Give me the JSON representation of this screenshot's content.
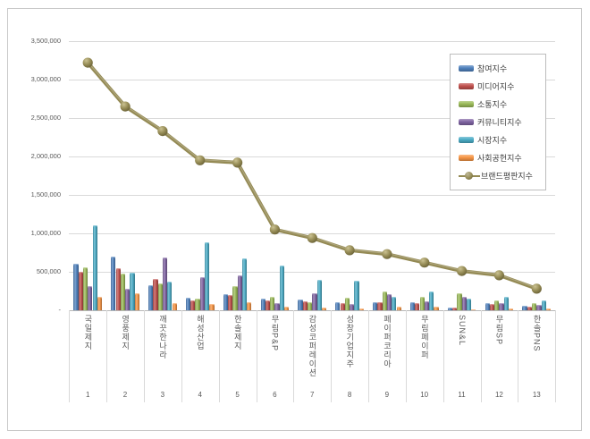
{
  "chart_data": {
    "type": "bar+line",
    "title": "",
    "categories": [
      "국일제지",
      "영풍제지",
      "깨끗한나라",
      "해성산업",
      "한솔제지",
      "무림P&P",
      "감성코퍼레이션",
      "성창기업지주",
      "페이퍼코리아",
      "무림페이퍼",
      "SUN&L",
      "무림SP",
      "한솔PNS"
    ],
    "ranks": [
      "1",
      "2",
      "3",
      "4",
      "5",
      "6",
      "7",
      "8",
      "9",
      "10",
      "11",
      "12",
      "13"
    ],
    "series": [
      {
        "key": "participation",
        "name": "참여지수",
        "color": "#4F81BD",
        "values": [
          610000,
          700000,
          330000,
          165000,
          210000,
          150000,
          140000,
          105000,
          105000,
          105000,
          35000,
          95000,
          60000
        ]
      },
      {
        "key": "media",
        "name": "미디어지수",
        "color": "#C0504D",
        "values": [
          500000,
          545000,
          410000,
          130000,
          200000,
          130000,
          115000,
          95000,
          105000,
          95000,
          35000,
          80000,
          50000
        ]
      },
      {
        "key": "communication",
        "name": "소통지수",
        "color": "#9BBB59",
        "values": [
          560000,
          475000,
          345000,
          150000,
          315000,
          175000,
          105000,
          165000,
          240000,
          175000,
          220000,
          130000,
          95000
        ]
      },
      {
        "key": "community",
        "name": "커뮤니티지수",
        "color": "#8064A2",
        "values": [
          310000,
          280000,
          690000,
          435000,
          455000,
          95000,
          220000,
          80000,
          210000,
          115000,
          175000,
          95000,
          70000
        ]
      },
      {
        "key": "market",
        "name": "시장지수",
        "color": "#4BACC6",
        "values": [
          1100000,
          490000,
          370000,
          880000,
          675000,
          580000,
          395000,
          385000,
          175000,
          245000,
          150000,
          175000,
          130000
        ]
      },
      {
        "key": "social",
        "name": "사회공헌지수",
        "color": "#F79646",
        "values": [
          180000,
          220000,
          95000,
          85000,
          105000,
          50000,
          35000,
          25000,
          45000,
          45000,
          15000,
          25000,
          25000
        ]
      }
    ],
    "line_series": {
      "key": "brand-reputation",
      "name": "브랜드평판지수",
      "color": "#948A54",
      "values": [
        3220000,
        2650000,
        2330000,
        1950000,
        1920000,
        1050000,
        940000,
        780000,
        730000,
        620000,
        510000,
        455000,
        280000
      ]
    },
    "y_axis": {
      "min": 0,
      "max": 3500000,
      "step": 500000,
      "tick_labels": [
        "-",
        "500,000",
        "1,000,000",
        "1,500,000",
        "2,000,000",
        "2,500,000",
        "3,000,000",
        "3,500,000"
      ]
    },
    "legend_position": "top-right",
    "grid": true
  }
}
